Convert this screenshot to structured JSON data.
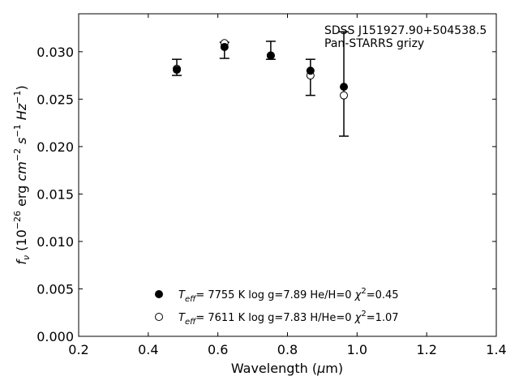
{
  "chart_data": {
    "type": "scatter",
    "annotations": [
      "SDSS J151927.90+504538.5",
      "Pan-STARRS grizy"
    ],
    "xlabel": {
      "main": "Wavelength (",
      "mu": "μ",
      "unit": "m)"
    },
    "ylabel": {
      "f": "f",
      "sub": "ν",
      "prefix": " (10",
      "exp1": "−26",
      "erg": " erg ",
      "cm": "cm",
      "exp2": "−2",
      "s": " s",
      "exp3": "−1",
      "hz": " Hz",
      "exp4": "−1",
      "close": ")"
    },
    "xlim": [
      0.2,
      1.4
    ],
    "ylim": [
      0.0,
      0.034
    ],
    "x_ticks": [
      0.2,
      0.4,
      0.6,
      0.8,
      1.0,
      1.2,
      1.4
    ],
    "x_tick_labels": [
      "0.2",
      "0.4",
      "0.6",
      "0.8",
      "1.0",
      "1.2",
      "1.4"
    ],
    "y_ticks": [
      0.0,
      0.005,
      0.01,
      0.015,
      0.02,
      0.025,
      0.03
    ],
    "y_tick_labels": [
      "0.000",
      "0.005",
      "0.010",
      "0.015",
      "0.020",
      "0.025",
      "0.030"
    ],
    "grid": false,
    "observed": {
      "x": [
        0.482,
        0.619,
        0.752,
        0.866,
        0.962
      ],
      "y": [
        0.0283,
        0.0305,
        0.0298,
        0.028,
        0.0263
      ],
      "err_low": [
        0.0275,
        0.0293,
        0.0292,
        0.0254,
        0.0211
      ],
      "err_high": [
        0.0292,
        0.031,
        0.0311,
        0.0292,
        0.0321
      ]
    },
    "series": [
      {
        "marker": "filled",
        "x": [
          0.482,
          0.619,
          0.752,
          0.866,
          0.962
        ],
        "y": [
          0.0281,
          0.0305,
          0.0296,
          0.028,
          0.0263
        ],
        "legend": {
          "t": "T",
          "teff_sub": "eff",
          "params": "=  7755 K  log g=7.89  He/H=0  ",
          "chi": "χ",
          "chi_exp": "2",
          "chi_val": "=0.45"
        }
      },
      {
        "marker": "open",
        "x": [
          0.482,
          0.619,
          0.752,
          0.866,
          0.962
        ],
        "y": [
          0.0282,
          0.0309,
          0.0296,
          0.0275,
          0.0254
        ],
        "legend": {
          "t": "T",
          "teff_sub": "eff",
          "params": "=  7611 K  log g=7.83  H/He=0  ",
          "chi": "χ",
          "chi_exp": "2",
          "chi_val": "=1.07"
        }
      }
    ],
    "legend_position": "lower-center"
  }
}
